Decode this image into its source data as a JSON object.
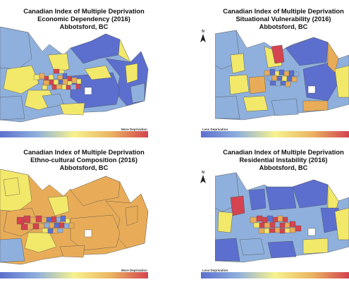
{
  "colors": {
    "very_low": "#5c6fce",
    "low": "#8fb0dc",
    "mid": "#f2e86a",
    "high": "#e8ac58",
    "very_high": "#d4434f",
    "boundary": "#4a4a4a"
  },
  "panels": [
    {
      "title_line1": "Canadian Index of Multiple Deprivation",
      "title_line2": "Economic Dependency (2016)",
      "title_line3": "Abbotsford, BC",
      "legend_label": "More Deprivation",
      "north_arrow": false
    },
    {
      "title_line1": "Canadian Index of Multiple Deprivation",
      "title_line2": "Situational Vulnerability (2016)",
      "title_line3": "Abbotsford, BC",
      "legend_label": "Less Deprivation",
      "north_arrow": true,
      "north_letter": "N"
    },
    {
      "title_line1": "Canadian Index of Multiple Deprivation",
      "title_line2": "Ethno-cultural Composition (2016)",
      "title_line3": "Abbotsford, BC",
      "legend_label": "More Deprivation",
      "north_arrow": false
    },
    {
      "title_line1": "Canadian Index of Multiple Deprivation",
      "title_line2": "Residential Instability (2016)",
      "title_line3": "Abbotsford, BC",
      "legend_label": "Less Deprivation",
      "north_arrow": true,
      "north_letter": "N"
    }
  ]
}
